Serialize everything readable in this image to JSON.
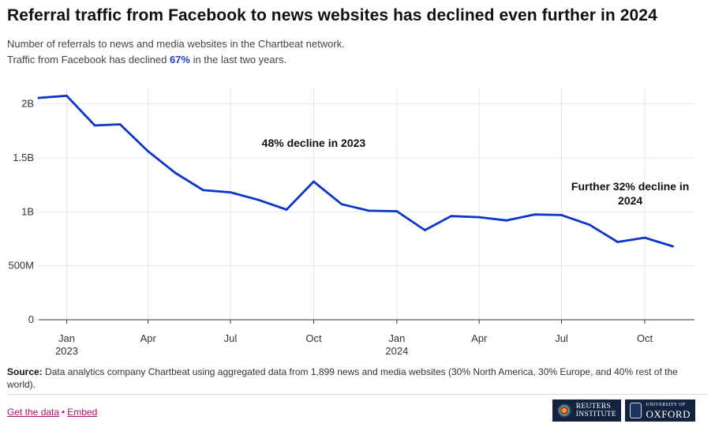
{
  "header": {
    "title": "Referral traffic from Facebook to news websites has declined even further in 2024",
    "subtitle_line1": "Number of referrals to news and media websites in the Chartbeat network.",
    "subtitle_line2_before": "Traffic from Facebook has declined ",
    "subtitle_highlight": "67%",
    "subtitle_line2_after": " in the last two years."
  },
  "chart_data": {
    "type": "line",
    "title": "Referral traffic from Facebook to news websites has declined even further in 2024",
    "ylim": [
      0,
      2150000000
    ],
    "xlim": [
      "2022-12-01",
      "2024-11-25"
    ],
    "grid": true,
    "y_ticks": [
      {
        "value": 0,
        "label": "0"
      },
      {
        "value": 500000000,
        "label": "500M"
      },
      {
        "value": 1000000000,
        "label": "1B"
      },
      {
        "value": 1500000000,
        "label": "1.5B"
      },
      {
        "value": 2000000000,
        "label": "2B"
      }
    ],
    "x_ticks": [
      {
        "date": "2023-01-01",
        "label": "Jan",
        "sublabel": "2023"
      },
      {
        "date": "2023-04-01",
        "label": "Apr",
        "sublabel": ""
      },
      {
        "date": "2023-07-01",
        "label": "Jul",
        "sublabel": ""
      },
      {
        "date": "2023-10-01",
        "label": "Oct",
        "sublabel": ""
      },
      {
        "date": "2024-01-01",
        "label": "Jan",
        "sublabel": "2024"
      },
      {
        "date": "2024-04-01",
        "label": "Apr",
        "sublabel": ""
      },
      {
        "date": "2024-07-01",
        "label": "Jul",
        "sublabel": ""
      },
      {
        "date": "2024-10-01",
        "label": "Oct",
        "sublabel": ""
      }
    ],
    "series": [
      {
        "color": "#0b36c9",
        "points": [
          {
            "x": "2022-12-01",
            "y": 2055000000
          },
          {
            "x": "2023-01-01",
            "y": 2075000000
          },
          {
            "x": "2023-02-01",
            "y": 1800000000
          },
          {
            "x": "2023-03-01",
            "y": 1810000000
          },
          {
            "x": "2023-04-01",
            "y": 1560000000
          },
          {
            "x": "2023-05-01",
            "y": 1360000000
          },
          {
            "x": "2023-06-01",
            "y": 1200000000
          },
          {
            "x": "2023-07-01",
            "y": 1180000000
          },
          {
            "x": "2023-08-01",
            "y": 1110000000
          },
          {
            "x": "2023-09-01",
            "y": 1020000000
          },
          {
            "x": "2023-10-01",
            "y": 1280000000
          },
          {
            "x": "2023-11-01",
            "y": 1070000000
          },
          {
            "x": "2023-12-01",
            "y": 1010000000
          },
          {
            "x": "2024-01-01",
            "y": 1005000000
          },
          {
            "x": "2024-02-01",
            "y": 830000000
          },
          {
            "x": "2024-03-01",
            "y": 960000000
          },
          {
            "x": "2024-04-01",
            "y": 950000000
          },
          {
            "x": "2024-05-01",
            "y": 920000000
          },
          {
            "x": "2024-06-01",
            "y": 975000000
          },
          {
            "x": "2024-07-01",
            "y": 970000000
          },
          {
            "x": "2024-08-01",
            "y": 880000000
          },
          {
            "x": "2024-09-01",
            "y": 720000000
          },
          {
            "x": "2024-10-01",
            "y": 760000000
          },
          {
            "x": "2024-11-01",
            "y": 680000000
          }
        ]
      }
    ],
    "annotations": [
      {
        "lines": [
          "48% decline in 2023"
        ],
        "x": "2023-10-01",
        "y": 1600000000
      },
      {
        "lines": [
          "Further 32% decline in",
          "2024"
        ],
        "x": "2024-09-15",
        "y": 1200000000
      }
    ]
  },
  "footer": {
    "source_label": "Source:",
    "source_text": " Data analytics company Chartbeat using aggregated data from 1,899 news and media websites (30% North America, 30% Europe, and 40% rest of the world).",
    "get_data_label": "Get the data",
    "separator": "•",
    "embed_label": "Embed",
    "reuters_line1": "REUTERS",
    "reuters_line2": "INSTITUTE",
    "oxford_line1": "UNIVERSITY OF",
    "oxford_line2": "OXFORD"
  }
}
